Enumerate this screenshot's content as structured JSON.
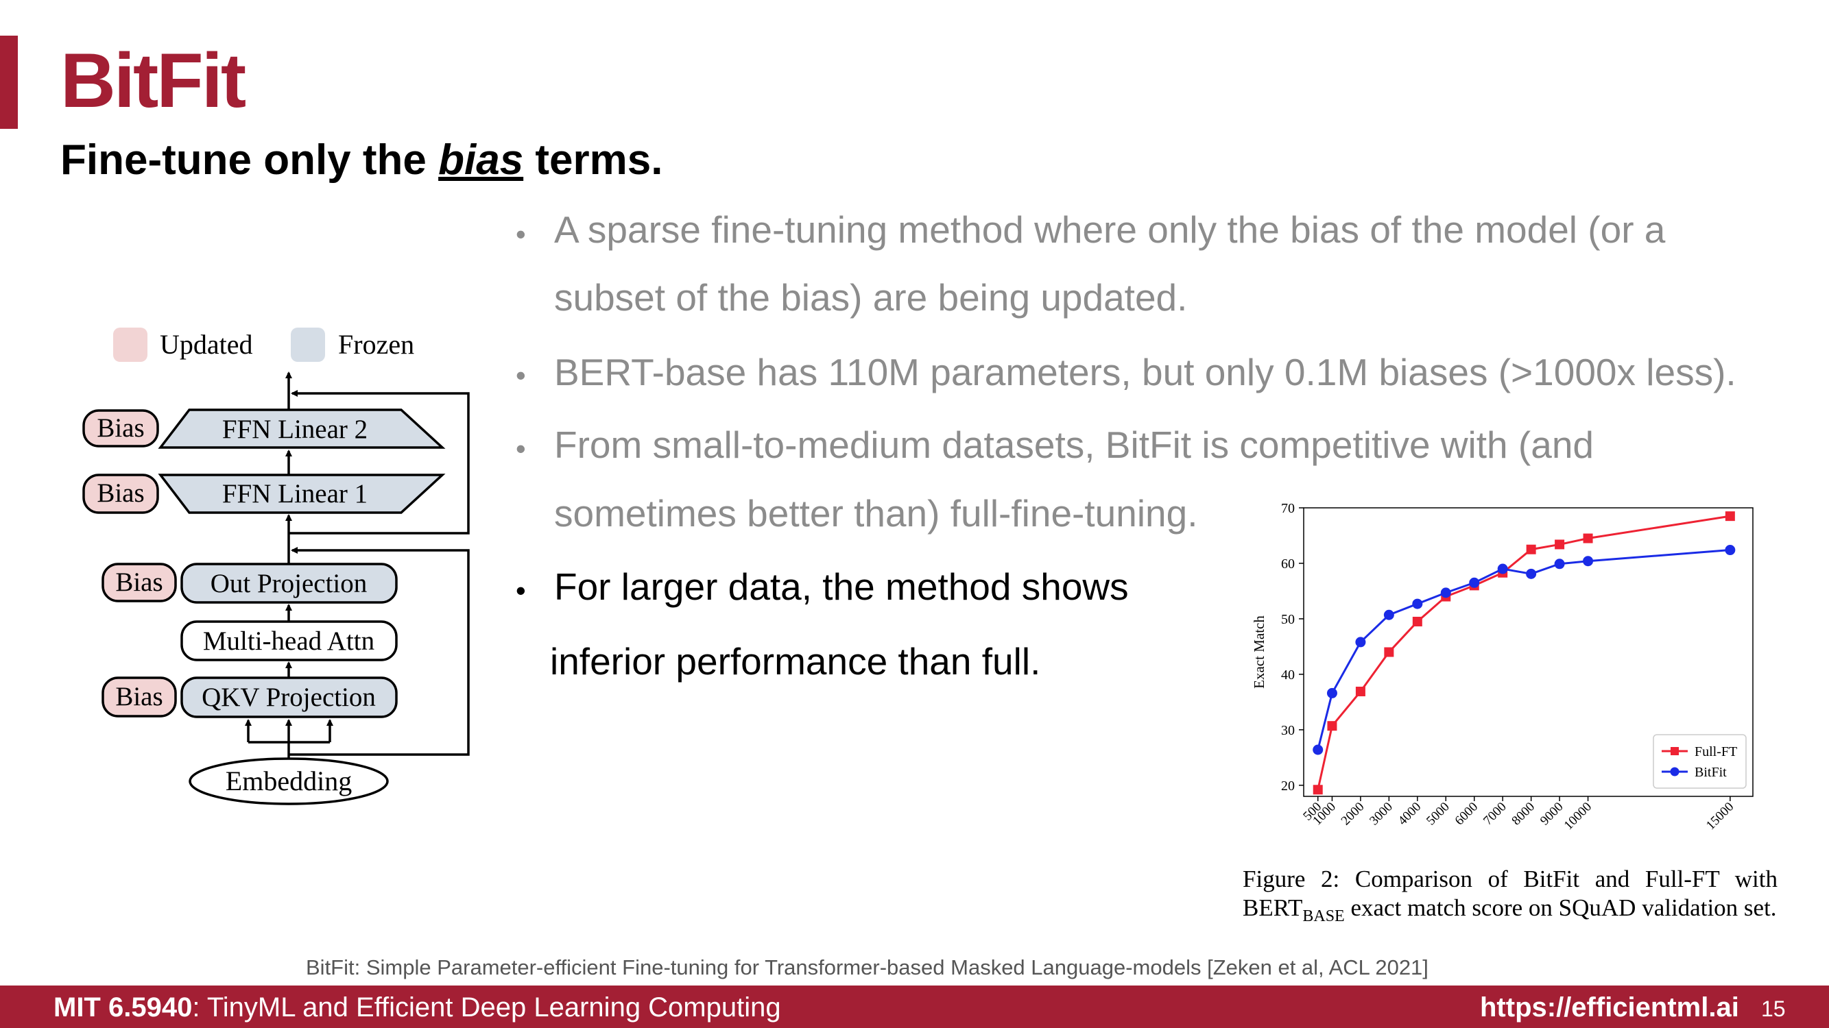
{
  "slide": {
    "title": "BitFit",
    "subtitle_pre": "Fine-tune only the ",
    "subtitle_emph": "bias",
    "subtitle_post": " terms."
  },
  "bullets": {
    "b1_line1": "A sparse fine-tuning method where only the bias of the model (or a",
    "b1_line2": "subset of the bias) are being updated.",
    "b2": "BERT-base has 110M parameters, but only 0.1M biases (>1000x less).",
    "b3_line1": "From small-to-medium datasets, BitFit is competitive with (and",
    "b3_line2": "sometimes better than) full-fine-tuning.",
    "b4_line1": "For larger data, the method shows",
    "b4_line2": "inferior performance than full.",
    "bullet_char": "•"
  },
  "diagram": {
    "legend_updated": "Updated",
    "legend_frozen": "Frozen",
    "bias_label": "Bias",
    "ffn2": "FFN Linear 2",
    "ffn1": "FFN Linear 1",
    "out_proj": "Out Projection",
    "mha": "Multi-head Attn",
    "qkv": "QKV Projection",
    "embedding": "Embedding",
    "colors": {
      "updated": "#f2d4d4",
      "frozen": "#d5dde6"
    }
  },
  "caption": {
    "line1": "Figure 2: Comparison of BitFit and Full-FT with",
    "line2_pre": "BERT",
    "line2_sub": "BASE",
    "line2_post": " exact match score on SQuAD validation set."
  },
  "chart_data": {
    "type": "line",
    "ylabel": "Exact Match",
    "xlabel": "",
    "ylim": [
      18,
      70
    ],
    "y_ticks": [
      20,
      30,
      40,
      50,
      60,
      70
    ],
    "x_ticks": [
      "500",
      "1000",
      "2000",
      "3000",
      "4000",
      "5000",
      "6000",
      "7000",
      "8000",
      "9000",
      "10000",
      "15000"
    ],
    "x": [
      500,
      1000,
      2000,
      3000,
      4000,
      5000,
      6000,
      7000,
      8000,
      9000,
      10000,
      15000
    ],
    "series": [
      {
        "name": "Full-FT",
        "color": "#ee2233",
        "marker": "square",
        "values": [
          19.2,
          30.7,
          36.9,
          44.0,
          49.5,
          54.0,
          56.0,
          58.3,
          62.5,
          63.4,
          64.5,
          68.5
        ]
      },
      {
        "name": "BitFit",
        "color": "#1a2be6",
        "marker": "circle",
        "values": [
          26.4,
          36.6,
          45.8,
          50.7,
          52.7,
          54.7,
          56.5,
          59.0,
          58.1,
          59.9,
          60.4,
          62.4
        ]
      }
    ],
    "legend": "bottom-right",
    "grid": false
  },
  "citation": "BitFit: Simple Parameter-efficient Fine-tuning for Transformer-based Masked Language-models [Zeken et al, ACL 2021]",
  "footer": {
    "course_code": "MIT 6.5940",
    "course_name": ": TinyML and Efficient Deep Learning Computing",
    "url": "https://efficientml.ai",
    "page": "15"
  }
}
